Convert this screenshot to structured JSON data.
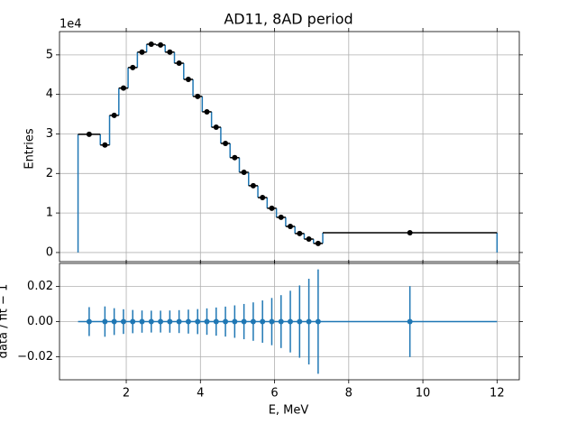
{
  "chart_data": [
    {
      "type": "histogram",
      "title": "AD11, 8AD period",
      "ylabel": "Entries",
      "y_offset_label": "1e4",
      "bins": [
        0.7,
        1.3,
        1.55,
        1.8,
        2.05,
        2.3,
        2.55,
        2.8,
        3.05,
        3.3,
        3.55,
        3.8,
        4.05,
        4.3,
        4.55,
        4.8,
        5.05,
        5.3,
        5.55,
        5.8,
        6.05,
        6.3,
        6.55,
        6.8,
        7.05,
        7.3,
        12
      ],
      "values": [
        2.99,
        2.72,
        3.47,
        4.16,
        4.68,
        5.07,
        5.27,
        5.25,
        5.07,
        4.79,
        4.38,
        3.95,
        3.56,
        3.17,
        2.76,
        2.4,
        2.03,
        1.69,
        1.39,
        1.12,
        0.89,
        0.66,
        0.48,
        0.34,
        0.23,
        0.5
      ],
      "color": "#1f77b4",
      "marker_color": "#000000",
      "xlim": [
        0.2,
        12.6
      ],
      "xticks": [
        2,
        4,
        6,
        8,
        10,
        12
      ],
      "ylim": [
        -0.23,
        5.59
      ],
      "yticks": [
        0,
        1,
        2,
        3,
        4,
        5
      ],
      "grid": true
    },
    {
      "type": "errorbar",
      "xlabel": "E, MeV",
      "ylabel": "data / fit − 1",
      "x": [
        1.0,
        1.425,
        1.675,
        1.925,
        2.175,
        2.425,
        2.675,
        2.925,
        3.175,
        3.425,
        3.675,
        3.925,
        4.175,
        4.425,
        4.675,
        4.925,
        5.175,
        5.425,
        5.675,
        5.925,
        6.175,
        6.425,
        6.675,
        6.925,
        7.175,
        9.65
      ],
      "values": [
        0,
        0,
        0,
        0,
        0,
        0,
        0,
        0,
        0,
        0,
        0,
        0,
        0,
        0,
        0,
        0,
        0,
        0,
        0,
        0,
        0,
        0,
        0,
        0,
        0,
        0
      ],
      "errors": [
        0.0082,
        0.0086,
        0.0076,
        0.007,
        0.0066,
        0.0063,
        0.0062,
        0.0062,
        0.0063,
        0.0065,
        0.0068,
        0.0071,
        0.0075,
        0.008,
        0.0085,
        0.0092,
        0.01,
        0.0109,
        0.012,
        0.0134,
        0.015,
        0.0175,
        0.0205,
        0.0243,
        0.0296,
        0.0201
      ],
      "line_xlim": [
        0.7,
        12
      ],
      "color": "#1f77b4",
      "xlim": [
        0.2,
        12.6
      ],
      "xticks": [
        2,
        4,
        6,
        8,
        10,
        12
      ],
      "ylim": [
        -0.033,
        0.033
      ],
      "yticks": [
        {
          "value": -0.02,
          "label": "−0.02"
        },
        {
          "value": 0,
          "label": "0.00"
        },
        {
          "value": 0.02,
          "label": "0.02"
        }
      ],
      "grid": true
    }
  ]
}
